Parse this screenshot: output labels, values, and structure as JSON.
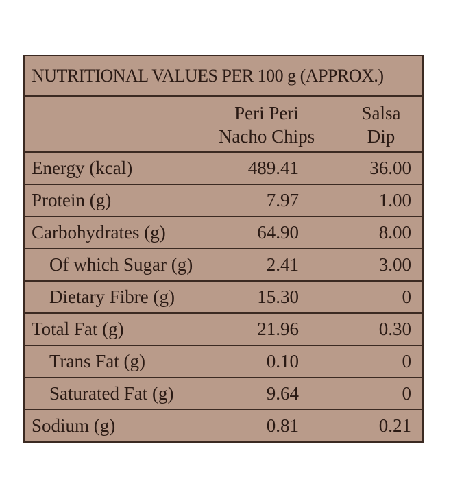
{
  "title": "NUTRITIONAL VALUES PER 100 g (APPROX.)",
  "columns": {
    "product1_line1": "Peri Peri",
    "product1_line2": "Nacho Chips",
    "product2_line1": "Salsa",
    "product2_line2": "Dip"
  },
  "rows": [
    {
      "label": "Energy (kcal)",
      "nacho": "489.41",
      "salsa": "36.00"
    },
    {
      "label": "Protein (g)",
      "nacho": "7.97",
      "salsa": "1.00"
    },
    {
      "label": "Carbohydrates (g)",
      "nacho": "64.90",
      "salsa": "8.00"
    },
    {
      "label": "Of which Sugar (g)",
      "nacho": "2.41",
      "salsa": "3.00"
    },
    {
      "label": "Dietary Fibre (g)",
      "nacho": "15.30",
      "salsa": "0"
    },
    {
      "label": "Total Fat (g)",
      "nacho": "21.96",
      "salsa": "0.30"
    },
    {
      "label": "Trans Fat (g)",
      "nacho": "0.10",
      "salsa": "0"
    },
    {
      "label": "Saturated Fat (g)",
      "nacho": "9.64",
      "salsa": "0"
    },
    {
      "label": "Sodium (g)",
      "nacho": "0.81",
      "salsa": "0.21"
    }
  ],
  "colors": {
    "panel_background": "#b99b8a",
    "border": "#3b2a22",
    "text": "#2a1a14"
  }
}
